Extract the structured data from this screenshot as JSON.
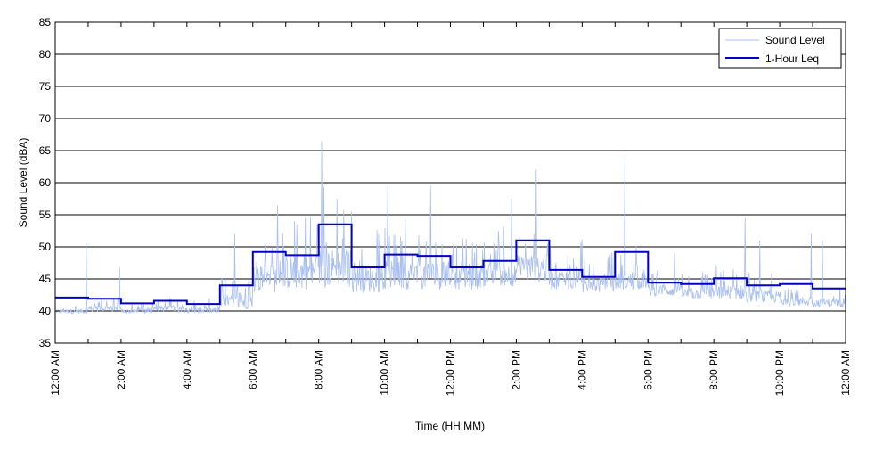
{
  "chart_data": {
    "type": "line",
    "xlabel": "Time (HH:MM)",
    "ylabel": "Sound Level (dBA)",
    "ylim": [
      35,
      85
    ],
    "xlim": [
      0,
      24
    ],
    "grid": "horizontal",
    "legend_position": "top-right",
    "y_ticks": [
      35,
      40,
      45,
      50,
      55,
      60,
      65,
      70,
      75,
      80,
      85
    ],
    "x_ticks": [
      {
        "x": 0,
        "label": "12:00 AM"
      },
      {
        "x": 2,
        "label": "2:00 AM"
      },
      {
        "x": 4,
        "label": "4:00 AM"
      },
      {
        "x": 6,
        "label": "6:00 AM"
      },
      {
        "x": 8,
        "label": "8:00 AM"
      },
      {
        "x": 10,
        "label": "10:00 AM"
      },
      {
        "x": 12,
        "label": "12:00 PM"
      },
      {
        "x": 14,
        "label": "2:00 PM"
      },
      {
        "x": 16,
        "label": "4:00 PM"
      },
      {
        "x": 18,
        "label": "6:00 PM"
      },
      {
        "x": 20,
        "label": "8:00 PM"
      },
      {
        "x": 22,
        "label": "10:00 PM"
      },
      {
        "x": 24,
        "label": "12:00 AM"
      }
    ],
    "series": [
      {
        "name": "Sound Level",
        "color": "#a8bff0",
        "baseline_by_hour": [
          40.8,
          41.0,
          40.8,
          41.0,
          40.8,
          41.5,
          44.0,
          44.5,
          44.8,
          44.0,
          44.5,
          44.5,
          44.5,
          45.0,
          45.5,
          44.5,
          44.0,
          44.5,
          43.5,
          43.0,
          43.0,
          42.5,
          42.0,
          41.8
        ],
        "spread_by_hour": [
          0.8,
          1.2,
          0.8,
          1.2,
          1.0,
          2.5,
          5.0,
          6.0,
          7.0,
          5.0,
          5.0,
          5.0,
          4.0,
          4.0,
          5.0,
          3.5,
          3.0,
          3.0,
          2.0,
          2.0,
          2.5,
          2.0,
          1.5,
          1.5
        ],
        "peaks": [
          {
            "x": 0.95,
            "y": 50.5
          },
          {
            "x": 1.95,
            "y": 46.8
          },
          {
            "x": 5.45,
            "y": 52.0
          },
          {
            "x": 6.75,
            "y": 56.5
          },
          {
            "x": 7.6,
            "y": 54.5
          },
          {
            "x": 8.1,
            "y": 66.5
          },
          {
            "x": 8.55,
            "y": 57.5
          },
          {
            "x": 9.0,
            "y": 55.5
          },
          {
            "x": 10.1,
            "y": 59.5
          },
          {
            "x": 11.4,
            "y": 59.5
          },
          {
            "x": 13.85,
            "y": 57.5
          },
          {
            "x": 14.6,
            "y": 62.0
          },
          {
            "x": 17.3,
            "y": 64.5
          },
          {
            "x": 18.8,
            "y": 49.0
          },
          {
            "x": 20.95,
            "y": 54.5
          },
          {
            "x": 21.4,
            "y": 51.0
          },
          {
            "x": 22.95,
            "y": 52.0
          },
          {
            "x": 23.3,
            "y": 51.0
          }
        ]
      },
      {
        "name": "1-Hour Leq",
        "color": "#0000cc",
        "values": [
          42.1,
          41.9,
          41.2,
          41.6,
          41.1,
          44.0,
          49.2,
          48.7,
          53.5,
          46.8,
          48.8,
          48.6,
          46.8,
          47.8,
          51.0,
          46.4,
          45.3,
          49.2,
          44.4,
          44.2,
          45.1,
          44.0,
          44.2,
          43.5
        ]
      }
    ]
  }
}
